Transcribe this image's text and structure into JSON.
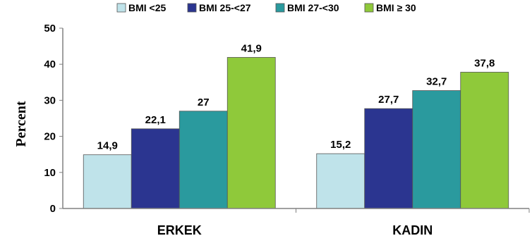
{
  "chart_data": {
    "type": "bar",
    "title": "",
    "xlabel": "",
    "ylabel": "Percent",
    "ylim": [
      0,
      50
    ],
    "yticks": [
      0,
      10,
      20,
      30,
      40,
      50
    ],
    "grid": false,
    "legend_position": "top",
    "categories": [
      "ERKEK",
      "KADIN"
    ],
    "series": [
      {
        "name": "BMI <25",
        "color": "#bfe3ea",
        "values": [
          14.9,
          15.2
        ],
        "labels": [
          "14,9",
          "15,2"
        ]
      },
      {
        "name": "BMI 25-<27",
        "color": "#2b3590",
        "values": [
          22.1,
          27.7
        ],
        "labels": [
          "22,1",
          "27,7"
        ]
      },
      {
        "name": "BMI 27-<30",
        "color": "#2a9a9e",
        "values": [
          27,
          32.7
        ],
        "labels": [
          "27",
          "32,7"
        ]
      },
      {
        "name": "BMI ≥ 30",
        "color": "#8fc93a",
        "values": [
          41.9,
          37.8
        ],
        "labels": [
          "41,9",
          "37,8"
        ]
      }
    ]
  }
}
